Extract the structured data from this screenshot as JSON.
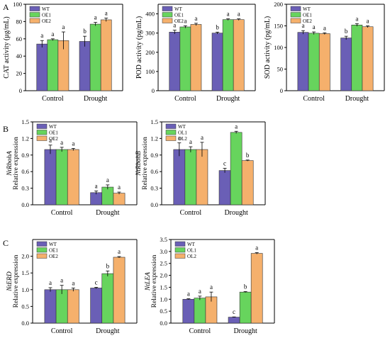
{
  "panel_labels": [
    "A",
    "B",
    "C"
  ],
  "colors": {
    "WT": "#6a5fb6",
    "OE1": "#67d45d",
    "OE2": "#f5b06c"
  },
  "chart_data": [
    {
      "type": "bar",
      "ylabel": "CAT activity (μg/mL)",
      "ylim": [
        0,
        100
      ],
      "yticks": [
        "0",
        "20",
        "40",
        "60",
        "80",
        "100"
      ],
      "categories": [
        "Control",
        "Drought"
      ],
      "series": [
        {
          "name": "WT",
          "values": [
            54,
            57
          ],
          "errors": [
            4,
            6
          ]
        },
        {
          "name": "OE1",
          "values": [
            59,
            77
          ],
          "errors": [
            1,
            2
          ]
        },
        {
          "name": "OE2",
          "values": [
            58,
            82
          ],
          "errors": [
            10,
            2
          ]
        }
      ],
      "letters": [
        [
          "a",
          "a",
          "a"
        ],
        [
          "b",
          "a",
          "a"
        ]
      ],
      "legend": [
        "WT",
        "OE1",
        "OE2"
      ],
      "legend_position": "top-left"
    },
    {
      "type": "bar",
      "ylabel": "POD activity (pg/mL)",
      "ylim": [
        0,
        450
      ],
      "yticks": [
        "0",
        "100",
        "200",
        "300",
        "400"
      ],
      "categories": [
        "Control",
        "Drought"
      ],
      "series": [
        {
          "name": "WT",
          "values": [
            305,
            300
          ],
          "errors": [
            10,
            5
          ]
        },
        {
          "name": "OE1",
          "values": [
            332,
            370
          ],
          "errors": [
            6,
            4
          ]
        },
        {
          "name": "OE2",
          "values": [
            345,
            370
          ],
          "errors": [
            6,
            4
          ]
        }
      ],
      "letters": [
        [
          "a",
          "a",
          "a"
        ],
        [
          "b",
          "a",
          "a"
        ]
      ],
      "legend": [
        "WT",
        "OE1",
        "OE2"
      ],
      "legend_position": "top-left"
    },
    {
      "type": "bar",
      "ylabel": "SOD activity (pg/mL)",
      "ylim": [
        0,
        200
      ],
      "yticks": [
        "0",
        "50",
        "100",
        "150",
        "200"
      ],
      "categories": [
        "Control",
        "Drought"
      ],
      "series": [
        {
          "name": "WT",
          "values": [
            135,
            122
          ],
          "errors": [
            4,
            4
          ]
        },
        {
          "name": "OE1",
          "values": [
            133,
            152
          ],
          "errors": [
            3,
            3
          ]
        },
        {
          "name": "OE2",
          "values": [
            132,
            148
          ],
          "errors": [
            2,
            2
          ]
        }
      ],
      "letters": [
        [
          "a",
          "a",
          "a"
        ],
        [
          "b",
          "a",
          "a"
        ]
      ],
      "legend": [
        "WT",
        "OE1",
        "OE2"
      ],
      "legend_position": "top-left"
    },
    {
      "type": "bar",
      "ylabel": "Relative expression",
      "gene": "NtRbohA",
      "ylim": [
        0,
        1.5
      ],
      "yticks": [
        "0.0",
        "0.3",
        "0.6",
        "0.9",
        "1.2",
        "1.5"
      ],
      "categories": [
        "Control",
        "Drought"
      ],
      "series": [
        {
          "name": "WT",
          "values": [
            1.0,
            0.22
          ],
          "errors": [
            0.08,
            0.03
          ]
        },
        {
          "name": "OE1",
          "values": [
            1.0,
            0.32
          ],
          "errors": [
            0.04,
            0.04
          ]
        },
        {
          "name": "OE2",
          "values": [
            1.0,
            0.21
          ],
          "errors": [
            0.02,
            0.02
          ]
        }
      ],
      "letters": [
        [
          "a",
          "a",
          "a"
        ],
        [
          "a",
          "a",
          "a"
        ]
      ],
      "legend": [
        "WT",
        "OE1",
        "OE2"
      ],
      "legend_position": "top-left"
    },
    {
      "type": "bar",
      "ylabel": "Relative expression",
      "gene": "NtRbohB",
      "ylim": [
        0,
        1.5
      ],
      "yticks": [
        "0.0",
        "0.3",
        "0.6",
        "0.9",
        "1.2",
        "1.5"
      ],
      "categories": [
        "Control",
        "Drought"
      ],
      "series": [
        {
          "name": "WT",
          "values": [
            1.0,
            0.62
          ],
          "errors": [
            0.12,
            0.04
          ]
        },
        {
          "name": "OE1",
          "values": [
            1.0,
            1.31
          ],
          "errors": [
            0.05,
            0.02
          ]
        },
        {
          "name": "OE2",
          "values": [
            1.0,
            0.8
          ],
          "errors": [
            0.13,
            0.01
          ]
        }
      ],
      "letters": [
        [
          "a",
          "a",
          "a"
        ],
        [
          "c",
          "a",
          "b"
        ]
      ],
      "legend": [
        "WT",
        "OL1",
        "OL2"
      ],
      "legend_position": "top-left"
    },
    {
      "type": "bar",
      "ylabel": "Relative expression",
      "gene": "NtERD",
      "ylim": [
        0,
        2.5
      ],
      "yticks": [
        "0.0",
        "0.5",
        "1.0",
        "1.5",
        "2.0"
      ],
      "categories": [
        "Control",
        "Drought"
      ],
      "series": [
        {
          "name": "WT",
          "values": [
            1.0,
            1.05
          ],
          "errors": [
            0.06,
            0.02
          ]
        },
        {
          "name": "OE1",
          "values": [
            1.0,
            1.48
          ],
          "errors": [
            0.13,
            0.08
          ]
        },
        {
          "name": "OE2",
          "values": [
            1.0,
            1.97
          ],
          "errors": [
            0.05,
            0.02
          ]
        }
      ],
      "letters": [
        [
          "a",
          "a",
          "a"
        ],
        [
          "c",
          "b",
          "a"
        ]
      ],
      "legend": [
        "WT",
        "OE1",
        "OE2"
      ],
      "legend_position": "top-left"
    },
    {
      "type": "bar",
      "ylabel": "Relative expression",
      "gene": "NtLEA",
      "ylim": [
        0,
        3.5
      ],
      "yticks": [
        "0.0",
        "0.5",
        "1.0",
        "1.5",
        "2.0",
        "2.5",
        "3.0",
        "3.5"
      ],
      "categories": [
        "Control",
        "Drought"
      ],
      "series": [
        {
          "name": "WT",
          "values": [
            1.0,
            0.25
          ],
          "errors": [
            0.02,
            0.01
          ]
        },
        {
          "name": "OE1",
          "values": [
            1.05,
            1.3
          ],
          "errors": [
            0.08,
            0.02
          ]
        },
        {
          "name": "OE2",
          "values": [
            1.1,
            2.92
          ],
          "errors": [
            0.2,
            0.03
          ]
        }
      ],
      "letters": [
        [
          "a",
          "a",
          "a"
        ],
        [
          "c",
          "b",
          "a"
        ]
      ],
      "legend": [
        "WT",
        "OL1",
        "OL2"
      ],
      "legend_position": "top-left"
    }
  ]
}
